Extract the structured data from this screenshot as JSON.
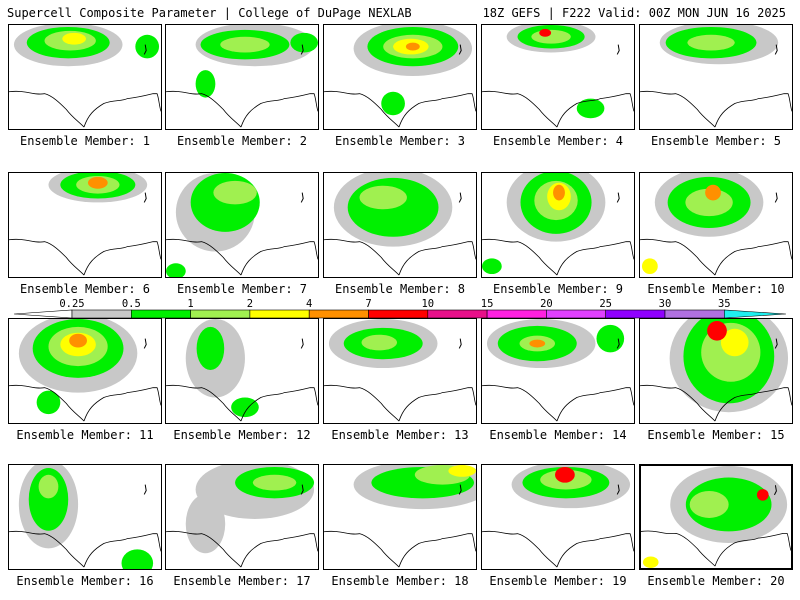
{
  "header": {
    "left": "Supercell Composite Parameter | College of DuPage NEXLAB",
    "right": "18Z GEFS | F222 Valid: 00Z MON JUN 16 2025"
  },
  "colorbar": {
    "ticks": [
      "0.25",
      "0.5",
      "1",
      "2",
      "4",
      "7",
      "10",
      "15",
      "20",
      "25",
      "30",
      "35"
    ],
    "colors": [
      "#c8c8c8",
      "#00f000",
      "#a0f050",
      "#ffff00",
      "#ff9000",
      "#ff0000",
      "#ff00a0",
      "#ff00ff",
      "#a000ff",
      "#b070e0",
      "#00ffff",
      "#ffffff"
    ],
    "segment_colors": [
      "#c8c8c8",
      "#00f000",
      "#a0f050",
      "#ffff00",
      "#ff9000",
      "#ff0000",
      "#e8108a",
      "#ff20e0",
      "#e040ff",
      "#9000ff",
      "#b070e0",
      "#20f0f0"
    ]
  },
  "members": [
    {
      "label": "Ensemble Member: 1"
    },
    {
      "label": "Ensemble Member: 2"
    },
    {
      "label": "Ensemble Member: 3"
    },
    {
      "label": "Ensemble Member: 4"
    },
    {
      "label": "Ensemble Member: 5"
    },
    {
      "label": "Ensemble Member: 6"
    },
    {
      "label": "Ensemble Member: 7"
    },
    {
      "label": "Ensemble Member: 8"
    },
    {
      "label": "Ensemble Member: 9"
    },
    {
      "label": "Ensemble Member: 10"
    },
    {
      "label": "Ensemble Member: 11"
    },
    {
      "label": "Ensemble Member: 12"
    },
    {
      "label": "Ensemble Member: 13"
    },
    {
      "label": "Ensemble Member: 14"
    },
    {
      "label": "Ensemble Member: 15"
    },
    {
      "label": "Ensemble Member: 16"
    },
    {
      "label": "Ensemble Member: 17"
    },
    {
      "label": "Ensemble Member: 18"
    },
    {
      "label": "Ensemble Member: 19"
    },
    {
      "label": "Ensemble Member: 20"
    }
  ]
}
